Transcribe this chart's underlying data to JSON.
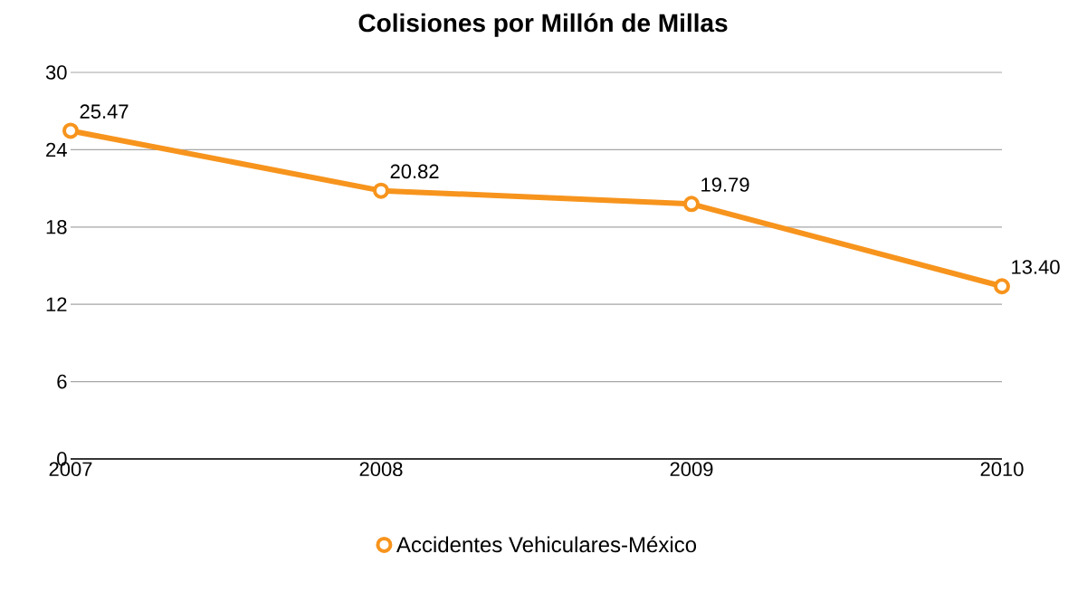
{
  "chart_data": {
    "type": "line",
    "title": "Colisiones por Millón de Millas",
    "categories": [
      "2007",
      "2008",
      "2009",
      "2010"
    ],
    "series": [
      {
        "name": "Accidentes Vehiculares-México",
        "color": "#f7941d",
        "values": [
          25.47,
          20.82,
          19.79,
          13.4
        ],
        "value_labels": [
          "25.47",
          "20.82",
          "19.79",
          "13.40"
        ]
      }
    ],
    "ylim": [
      0,
      30
    ],
    "yticks": [
      0,
      6,
      12,
      18,
      24,
      30
    ],
    "grid": "y",
    "legend": "bottom",
    "marker": "circle",
    "line_style": "solid"
  }
}
